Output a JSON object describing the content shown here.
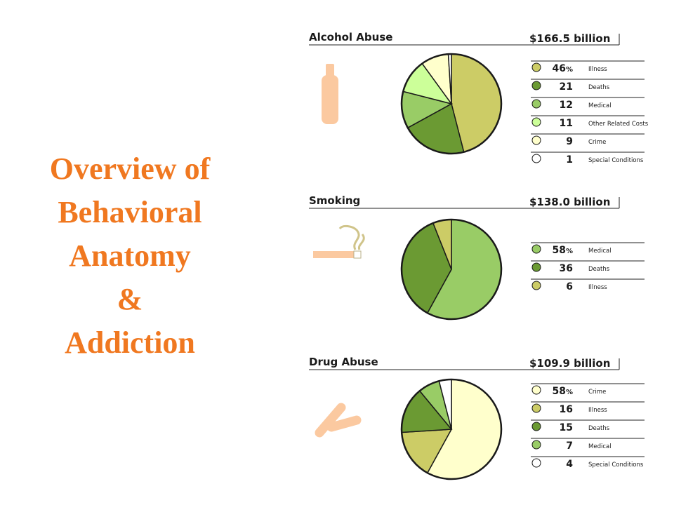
{
  "title_lines": [
    "Overview of",
    "Behavioral",
    "Anatomy",
    "&",
    "Addiction"
  ],
  "colors": {
    "title": "#f07820",
    "icon": "#fbc9a0",
    "olive": "#cccc66",
    "dark_green": "#6b9a33",
    "mid_green": "#99cc66",
    "light_green": "#ccff99",
    "cream": "#ffffcc",
    "white": "#ffffff"
  },
  "chart_data": [
    {
      "type": "pie",
      "title": "Alcohol Abuse",
      "total": "$166.5 billion",
      "icon": "bottle-icon",
      "slices": [
        {
          "label": "Illness",
          "value": 46,
          "color": "#cccc66"
        },
        {
          "label": "Deaths",
          "value": 21,
          "color": "#6b9a33"
        },
        {
          "label": "Medical",
          "value": 12,
          "color": "#99cc66"
        },
        {
          "label": "Other Related Costs",
          "value": 11,
          "color": "#ccff99"
        },
        {
          "label": "Crime",
          "value": 9,
          "color": "#ffffcc"
        },
        {
          "label": "Special Conditions",
          "value": 1,
          "color": "#ffffff"
        }
      ],
      "legend": "right"
    },
    {
      "type": "pie",
      "title": "Smoking",
      "total": "$138.0 billion",
      "icon": "cigarette-icon",
      "slices": [
        {
          "label": "Medical",
          "value": 58,
          "color": "#99cc66"
        },
        {
          "label": "Deaths",
          "value": 36,
          "color": "#6b9a33"
        },
        {
          "label": "Illness",
          "value": 6,
          "color": "#cccc66"
        }
      ],
      "legend": "right"
    },
    {
      "type": "pie",
      "title": "Drug Abuse",
      "total": "$109.9 billion",
      "icon": "pills-icon",
      "slices": [
        {
          "label": "Crime",
          "value": 58,
          "color": "#ffffcc"
        },
        {
          "label": "Illness",
          "value": 16,
          "color": "#cccc66"
        },
        {
          "label": "Deaths",
          "value": 15,
          "color": "#6b9a33"
        },
        {
          "label": "Medical",
          "value": 7,
          "color": "#99cc66"
        },
        {
          "label": "Special Conditions",
          "value": 4,
          "color": "#ffffff"
        }
      ],
      "legend": "right"
    }
  ]
}
